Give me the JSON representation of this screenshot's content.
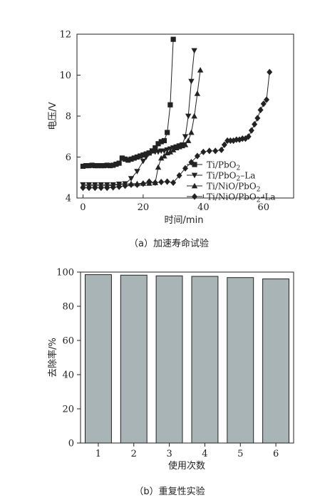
{
  "chart_data": [
    {
      "type": "line",
      "caption": "（a）加速寿命试验",
      "xlabel": "时间/min",
      "ylabel": "电压/V",
      "xlim": [
        -2,
        70
      ],
      "ylim": [
        4,
        12
      ],
      "xticks": [
        0,
        20,
        40,
        60
      ],
      "yticks": [
        4,
        6,
        8,
        10,
        12
      ],
      "legend_position": "bottom-right",
      "series": [
        {
          "name": "Ti/PbO",
          "name_sub": "2",
          "name_suffix": "",
          "marker": "square",
          "x": [
            0,
            1,
            2,
            3,
            4,
            5,
            6,
            7,
            8,
            9,
            10,
            11,
            12,
            13,
            14,
            15,
            16,
            17,
            18,
            19,
            20,
            21,
            22,
            23,
            24,
            25,
            26,
            27,
            28,
            29,
            30
          ],
          "y": [
            5.55,
            5.58,
            5.58,
            5.6,
            5.58,
            5.58,
            5.58,
            5.58,
            5.6,
            5.58,
            5.6,
            5.65,
            5.7,
            5.95,
            5.9,
            5.85,
            5.9,
            5.95,
            6.0,
            6.05,
            6.1,
            6.15,
            6.2,
            6.3,
            6.45,
            6.65,
            6.75,
            6.8,
            7.2,
            8.55,
            11.75
          ]
        },
        {
          "name": "Ti/PbO",
          "name_sub": "2",
          "name_suffix": "–La",
          "marker": "triangle-down",
          "x": [
            0,
            2,
            4,
            6,
            8,
            10,
            12,
            14,
            16,
            18,
            20,
            21,
            22,
            23,
            24,
            25,
            26,
            27,
            28,
            29,
            30,
            31,
            32,
            33,
            34,
            35,
            36,
            37
          ],
          "y": [
            4.65,
            4.65,
            4.65,
            4.65,
            4.65,
            4.65,
            4.68,
            4.7,
            4.95,
            5.3,
            5.8,
            6.0,
            6.2,
            6.3,
            6.25,
            6.25,
            6.3,
            6.3,
            6.35,
            6.4,
            6.45,
            6.5,
            6.55,
            6.6,
            7.0,
            8.0,
            9.7,
            11.2
          ]
        },
        {
          "name": "Ti/NiO/PbO",
          "name_sub": "2",
          "name_suffix": "",
          "marker": "triangle-up",
          "x": [
            0,
            2,
            4,
            6,
            8,
            10,
            12,
            14,
            16,
            18,
            20,
            22,
            24,
            25,
            26,
            27,
            28,
            29,
            30,
            31,
            32,
            33,
            34,
            35,
            36,
            37,
            38,
            39
          ],
          "y": [
            4.6,
            4.6,
            4.6,
            4.6,
            4.6,
            4.62,
            4.65,
            4.68,
            4.7,
            4.7,
            4.72,
            4.72,
            4.75,
            5.5,
            5.95,
            6.05,
            6.2,
            6.25,
            6.35,
            6.45,
            6.5,
            6.55,
            6.6,
            6.8,
            7.2,
            8.0,
            9.1,
            10.25
          ]
        },
        {
          "name": "Ti/NiO/PbO",
          "name_sub": "2",
          "name_suffix": "–La",
          "marker": "diamond",
          "x": [
            0,
            2,
            4,
            6,
            8,
            10,
            12,
            14,
            16,
            18,
            20,
            22,
            24,
            26,
            28,
            30,
            32,
            34,
            36,
            38,
            40,
            42,
            44,
            46,
            47,
            48,
            49,
            50,
            51,
            52,
            53,
            54,
            55,
            56,
            57,
            58,
            59,
            60,
            61,
            62
          ],
          "y": [
            4.5,
            4.5,
            4.5,
            4.5,
            4.5,
            4.52,
            4.55,
            4.6,
            4.65,
            4.65,
            4.7,
            4.8,
            4.75,
            4.78,
            4.8,
            4.75,
            5.1,
            5.45,
            5.75,
            6.05,
            6.25,
            6.3,
            6.3,
            6.35,
            6.6,
            6.8,
            6.8,
            6.8,
            6.85,
            6.85,
            6.9,
            6.9,
            7.0,
            7.3,
            7.6,
            7.9,
            8.3,
            8.6,
            8.8,
            10.15
          ]
        }
      ]
    },
    {
      "type": "bar",
      "caption": "（b）重复性实验",
      "xlabel": "使用次数",
      "ylabel": "去除率/%",
      "ylim": [
        0,
        100
      ],
      "yticks": [
        0,
        20,
        40,
        60,
        80,
        100
      ],
      "categories": [
        "1",
        "2",
        "3",
        "4",
        "5",
        "6"
      ],
      "values": [
        98.5,
        98.2,
        97.8,
        97.5,
        96.8,
        96.0
      ],
      "bar_color": "#a9b4b6"
    }
  ]
}
